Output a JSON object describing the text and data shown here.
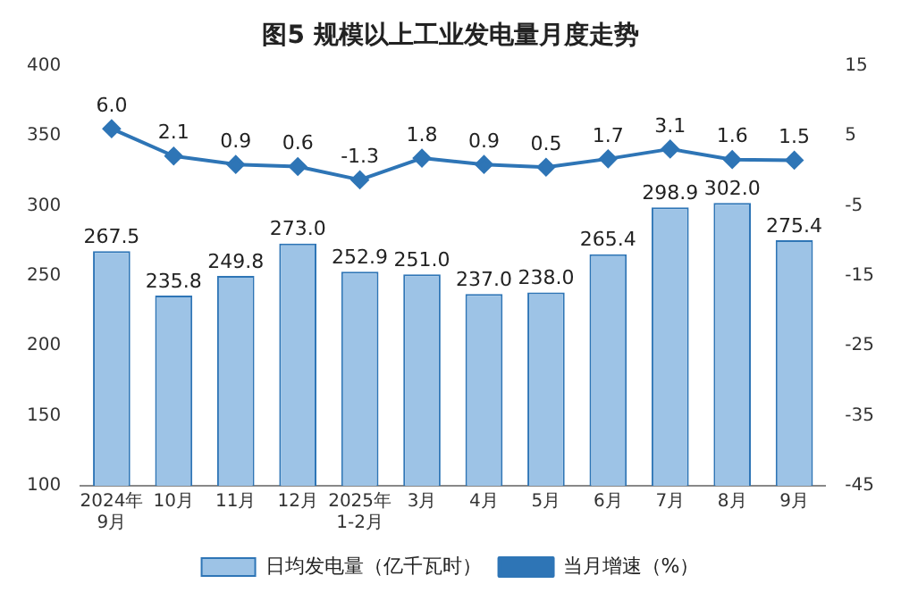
{
  "chart_data": {
    "type": "bar",
    "title": "图5 规模以上工业发电量月度走势",
    "categories": [
      "2024年\n9月",
      "10月",
      "11月",
      "12月",
      "2025年\n1-2月",
      "3月",
      "4月",
      "5月",
      "6月",
      "7月",
      "8月",
      "9月"
    ],
    "series": [
      {
        "name": "日均发电量（亿千瓦时）",
        "color": "#9dc3e6",
        "values": [
          267.5,
          235.8,
          249.8,
          273.0,
          252.9,
          251.0,
          237.0,
          238.0,
          265.4,
          298.9,
          302.0,
          275.4
        ],
        "value_labels": [
          "267.5",
          "235.8",
          "249.8",
          "273.0",
          "252.9",
          "251.0",
          "237.0",
          "238.0",
          "265.4",
          "298.9",
          "302.0",
          "275.4"
        ]
      },
      {
        "name": "当月增速（%）",
        "type": "line",
        "axis": "y2",
        "color": "#2e75b6",
        "values": [
          6.0,
          2.1,
          0.9,
          0.6,
          -1.3,
          1.8,
          0.9,
          0.5,
          1.7,
          3.1,
          1.6,
          1.5
        ],
        "value_labels": [
          "6.0",
          "2.1",
          "0.9",
          "0.6",
          "-1.3",
          "1.8",
          "0.9",
          "0.5",
          "1.7",
          "3.1",
          "1.6",
          "1.5"
        ]
      }
    ],
    "ylim": [
      100,
      400
    ],
    "yticks": [
      100,
      150,
      200,
      250,
      300,
      350,
      400
    ],
    "y2lim": [
      -45,
      15
    ],
    "y2ticks": [
      -45,
      -35,
      -25,
      -15,
      -5,
      5,
      15
    ],
    "grid": false,
    "legend": "bottom",
    "marker": "diamond",
    "line_style": "solid"
  }
}
